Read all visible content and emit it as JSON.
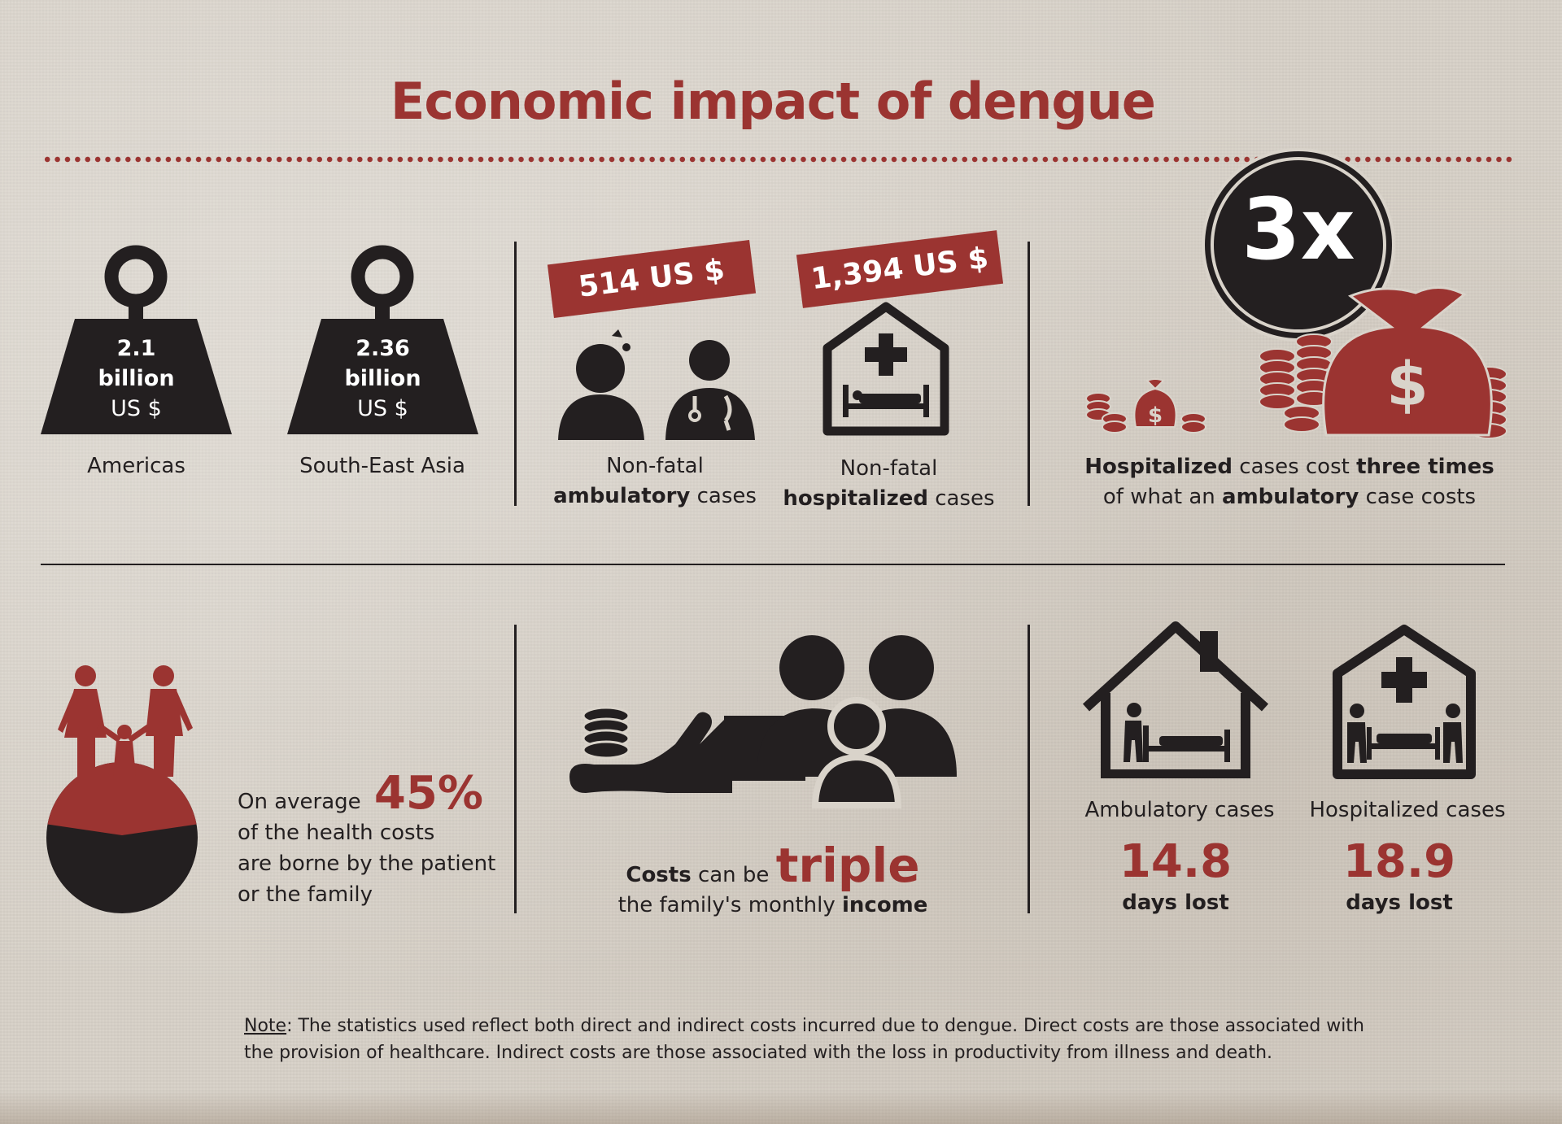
{
  "title": "Economic impact of dengue",
  "weights": [
    {
      "amount": "2.1",
      "unit": "billion",
      "currency": "US $",
      "region": "Americas"
    },
    {
      "amount": "2.36",
      "unit": "billion",
      "currency": "US $",
      "region": "South-East Asia"
    }
  ],
  "costs": {
    "ambulatory_tag": "514 US $",
    "ambulatory_line1": "Non-fatal",
    "ambulatory_bold": "ambulatory",
    "ambulatory_rest": " cases",
    "hospitalized_tag": "1,394 US $",
    "hospitalized_line1": "Non-fatal",
    "hospitalized_bold": "hospitalized",
    "hospitalized_rest": " cases"
  },
  "three_times": {
    "badge": "3x",
    "p1_bold": "Hospitalized",
    "p1_mid": " cases cost ",
    "p1_bold2": "three times",
    "p2_pre": "of what an ",
    "p2_bold": "ambulatory",
    "p2_post": " case costs"
  },
  "share": {
    "pre": "On average",
    "percent": "45%",
    "line2": "of the health costs",
    "line3": "are borne by the patient",
    "line4": "or the family"
  },
  "income": {
    "bold1": "Costs",
    "mid": " can be ",
    "big": "triple",
    "line2_pre": "the family's monthly ",
    "line2_bold": "income"
  },
  "days": [
    {
      "label": "Ambulatory cases",
      "value": "14.8",
      "caption": "days lost"
    },
    {
      "label": "Hospitalized cases",
      "value": "18.9",
      "caption": "days lost"
    }
  ],
  "note": {
    "lead": "Note",
    "text": ": The statistics used reflect both direct and indirect costs incurred due to dengue. Direct costs are those associated with the provision of healthcare. Indirect costs are those associated with the loss in productivity from illness and death."
  },
  "colors": {
    "accent": "#9b3431",
    "ink": "#231f20",
    "background": "#d9d3ca"
  }
}
